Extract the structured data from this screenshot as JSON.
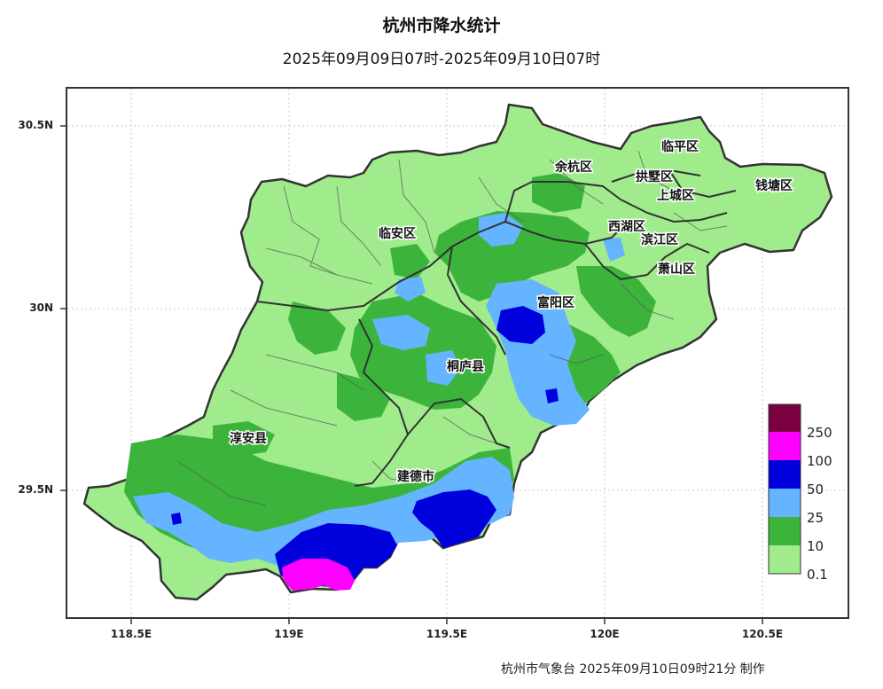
{
  "title": "杭州市降水统计",
  "subtitle": "2025年09月09日07时-2025年09月10日07时",
  "credit": "杭州市气象台 2025年09月10日09时21分 制作",
  "axes": {
    "lat_labels": [
      "30.5N",
      "30N",
      "29.5N"
    ],
    "lon_labels": [
      "118.5E",
      "119E",
      "119.5E",
      "120E",
      "120.5E"
    ]
  },
  "places": [
    {
      "name": "临平区"
    },
    {
      "name": "余杭区"
    },
    {
      "name": "拱墅区"
    },
    {
      "name": "上城区"
    },
    {
      "name": "钱塘区"
    },
    {
      "name": "临安区"
    },
    {
      "name": "西湖区"
    },
    {
      "name": "滨江区"
    },
    {
      "name": "萧山区"
    },
    {
      "name": "富阳区"
    },
    {
      "name": "桐庐县"
    },
    {
      "name": "淳安县"
    },
    {
      "name": "建德市"
    }
  ],
  "legend": {
    "levels": [
      "250",
      "100",
      "50",
      "25",
      "10",
      "0.1"
    ],
    "colors": [
      "#7b0040",
      "#ff00ff",
      "#0000dd",
      "#64b4ff",
      "#3cb43c",
      "#a0ec8c"
    ]
  },
  "colors": {
    "light_green": "#a0ec8c",
    "green": "#3cb43c",
    "light_blue": "#64b4ff",
    "blue": "#0000dd",
    "magenta": "#ff00ff",
    "dark_red": "#7b0040"
  }
}
